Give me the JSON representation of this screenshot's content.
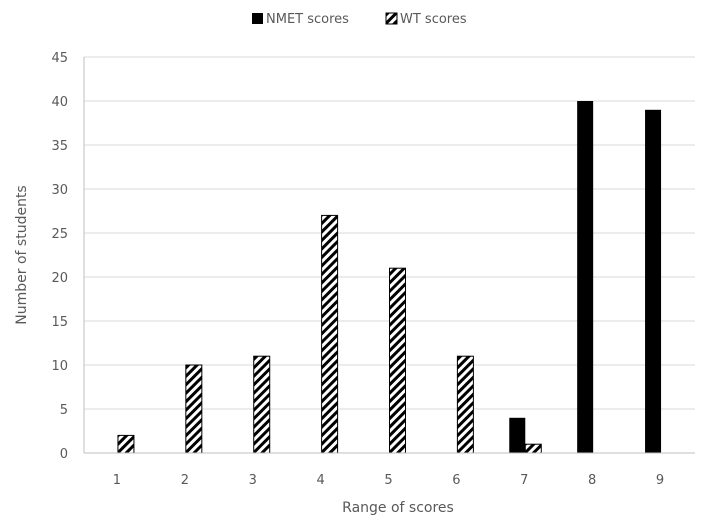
{
  "chart_data": {
    "type": "bar",
    "title": "",
    "xlabel": "Range of scores",
    "ylabel": "Number of students",
    "categories": [
      "1",
      "2",
      "3",
      "4",
      "5",
      "6",
      "7",
      "8",
      "9"
    ],
    "series": [
      {
        "name": "NMET scores",
        "values": [
          0,
          0,
          0,
          0,
          0,
          0,
          4,
          40,
          39
        ],
        "color": "#000000",
        "pattern": "solid"
      },
      {
        "name": "WT scores",
        "values": [
          2,
          10,
          11,
          27,
          21,
          11,
          1,
          0,
          0
        ],
        "color": "#000000",
        "pattern": "diagonal-hatch"
      }
    ],
    "ylim": [
      0,
      45
    ],
    "yticks": [
      0,
      5,
      10,
      15,
      20,
      25,
      30,
      35,
      40,
      45
    ],
    "grid": true,
    "legend_position": "top-center"
  },
  "colors": {
    "gridline": "#d9d9d9",
    "axis": "#bfbfbf",
    "text": "#595959"
  }
}
